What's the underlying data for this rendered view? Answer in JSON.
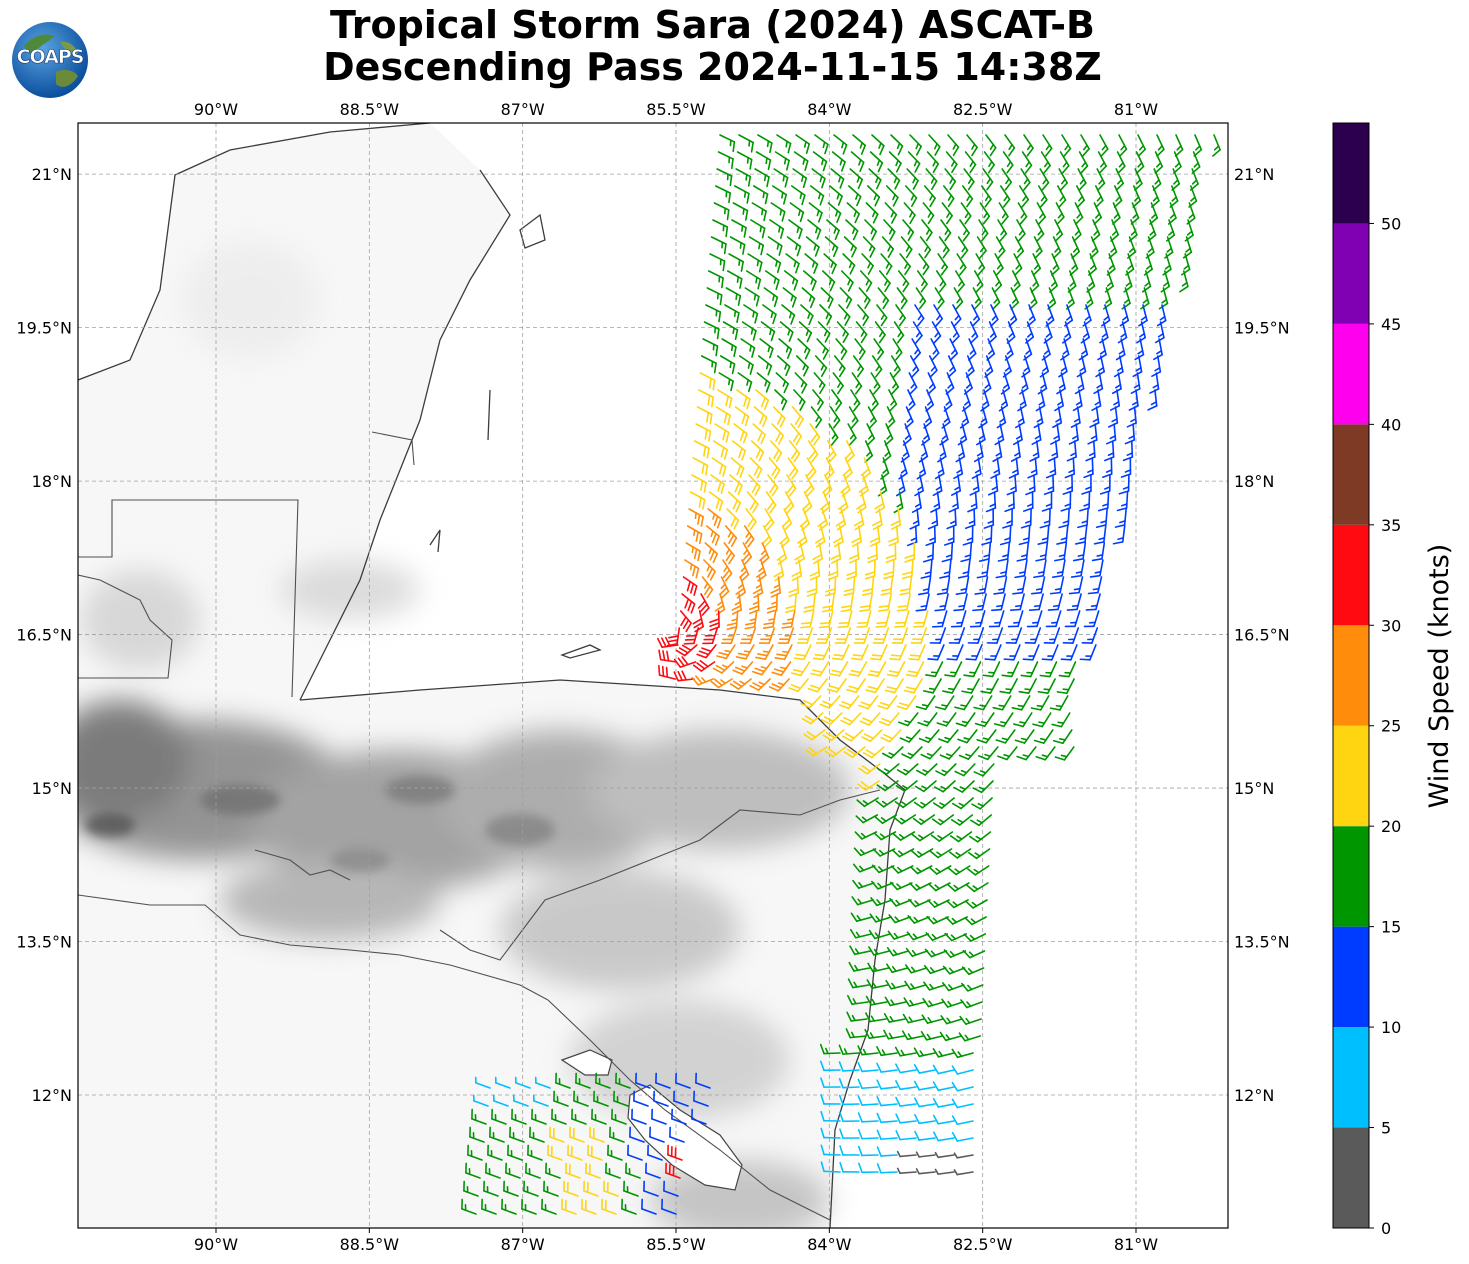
{
  "title": {
    "line1": "Tropical Storm Sara (2024) ASCAT-B",
    "line2": "Descending Pass 2024-11-15 14:38Z"
  },
  "logo": {
    "text": "COAPS"
  },
  "map": {
    "projection": "PlateCarree",
    "lon_ticks": [
      "90°W",
      "88.5°W",
      "87°W",
      "85.5°W",
      "84°W",
      "82.5°W",
      "81°W"
    ],
    "lat_ticks": [
      "21°N",
      "19.5°N",
      "18°N",
      "16.5°N",
      "15°N",
      "13.5°N",
      "12°N"
    ],
    "lon_values": [
      -90,
      -88.5,
      -87,
      -85.5,
      -84,
      -82.5,
      -81
    ],
    "lat_values": [
      21,
      19.5,
      18,
      16.5,
      15,
      13.5,
      12
    ],
    "extent": {
      "lon_min": -91.35,
      "lon_max": -80.1,
      "lat_min": 10.7,
      "lat_max": 21.5
    },
    "gridlines": true,
    "terrain_shading": "grayscale",
    "swaths": [
      {
        "name": "main-swath",
        "color_mix": "green-blue-yellow-orange"
      },
      {
        "name": "south-swath",
        "color_mix": "green-yellow-blue-cyan"
      }
    ]
  },
  "colorbar": {
    "label": "Wind Speed (knots)",
    "ticks": [
      "0",
      "5",
      "10",
      "15",
      "20",
      "25",
      "30",
      "35",
      "40",
      "45",
      "50"
    ],
    "bins": [
      {
        "from": 0,
        "to": 5,
        "color": "#5a5a5a"
      },
      {
        "from": 5,
        "to": 10,
        "color": "#00bfff"
      },
      {
        "from": 10,
        "to": 15,
        "color": "#003cff"
      },
      {
        "from": 15,
        "to": 20,
        "color": "#009600"
      },
      {
        "from": 20,
        "to": 25,
        "color": "#ffd410"
      },
      {
        "from": 25,
        "to": 30,
        "color": "#ff8c0a"
      },
      {
        "from": 30,
        "to": 35,
        "color": "#ff0a10"
      },
      {
        "from": 35,
        "to": 40,
        "color": "#7f3a26"
      },
      {
        "from": 40,
        "to": 45,
        "color": "#ff00ee"
      },
      {
        "from": 45,
        "to": 50,
        "color": "#8000b4"
      },
      {
        "from": 50,
        "to": 55,
        "color": "#2d004f"
      }
    ]
  }
}
